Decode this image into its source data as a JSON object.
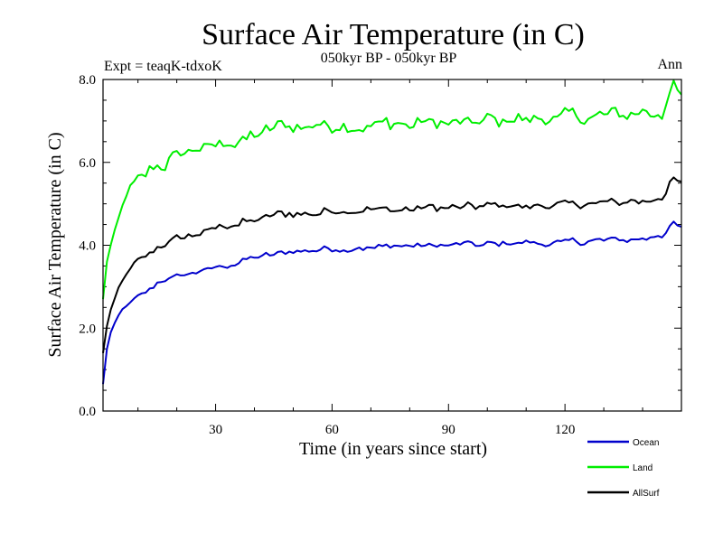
{
  "chart_data": {
    "type": "line",
    "title": "Surface Air Temperature (in C)",
    "subtitle": "050kyr BP - 050kyr BP",
    "experiment": "Expt = teaqK-tdxoK",
    "season": "Ann",
    "xlabel": "Time (in years since start)",
    "ylabel": "Surface Air Temperature (in C)",
    "xlim": [
      1,
      150
    ],
    "ylim": [
      0,
      8
    ],
    "xticks": [
      30,
      60,
      90,
      120
    ],
    "yticks": [
      0,
      2,
      4,
      6,
      8
    ],
    "xtick_labels": [
      "30",
      "60",
      "90",
      "120"
    ],
    "ytick_labels": [
      "0.0",
      "2.0",
      "4.0",
      "6.0",
      "8.0"
    ],
    "legend_position": "bottom-right",
    "series": [
      {
        "name": "Ocean",
        "color": "#0000cc",
        "key_values": [
          [
            1,
            0.65
          ],
          [
            2,
            1.5
          ],
          [
            3,
            1.9
          ],
          [
            5,
            2.3
          ],
          [
            7,
            2.55
          ],
          [
            10,
            2.75
          ],
          [
            15,
            3.1
          ],
          [
            20,
            3.25
          ],
          [
            25,
            3.35
          ],
          [
            30,
            3.45
          ],
          [
            35,
            3.55
          ],
          [
            40,
            3.7
          ],
          [
            45,
            3.8
          ],
          [
            50,
            3.85
          ],
          [
            55,
            3.88
          ],
          [
            60,
            3.9
          ],
          [
            70,
            3.95
          ],
          [
            80,
            3.97
          ],
          [
            90,
            4.0
          ],
          [
            100,
            4.02
          ],
          [
            110,
            4.05
          ],
          [
            120,
            4.08
          ],
          [
            130,
            4.12
          ],
          [
            140,
            4.15
          ],
          [
            145,
            4.25
          ],
          [
            148,
            4.5
          ],
          [
            150,
            4.4
          ]
        ],
        "noise_amplitude": 0.15
      },
      {
        "name": "Land",
        "color": "#00ee00",
        "key_values": [
          [
            1,
            2.7
          ],
          [
            2,
            3.6
          ],
          [
            3,
            4.0
          ],
          [
            5,
            4.6
          ],
          [
            7,
            5.2
          ],
          [
            10,
            5.6
          ],
          [
            15,
            5.95
          ],
          [
            20,
            6.1
          ],
          [
            25,
            6.25
          ],
          [
            30,
            6.4
          ],
          [
            35,
            6.5
          ],
          [
            40,
            6.65
          ],
          [
            45,
            6.8
          ],
          [
            50,
            6.88
          ],
          [
            55,
            6.9
          ],
          [
            60,
            6.92
          ],
          [
            70,
            6.93
          ],
          [
            80,
            6.95
          ],
          [
            90,
            6.98
          ],
          [
            100,
            7.0
          ],
          [
            110,
            7.05
          ],
          [
            120,
            7.08
          ],
          [
            130,
            7.12
          ],
          [
            140,
            7.15
          ],
          [
            145,
            7.2
          ],
          [
            148,
            7.85
          ],
          [
            150,
            7.6
          ]
        ],
        "noise_amplitude": 0.35
      },
      {
        "name": "AllSurf",
        "color": "#000000",
        "key_values": [
          [
            1,
            1.4
          ],
          [
            2,
            2.05
          ],
          [
            3,
            2.45
          ],
          [
            5,
            2.95
          ],
          [
            7,
            3.3
          ],
          [
            10,
            3.6
          ],
          [
            15,
            3.95
          ],
          [
            20,
            4.12
          ],
          [
            25,
            4.28
          ],
          [
            30,
            4.4
          ],
          [
            35,
            4.5
          ],
          [
            40,
            4.63
          ],
          [
            45,
            4.73
          ],
          [
            50,
            4.78
          ],
          [
            55,
            4.8
          ],
          [
            60,
            4.82
          ],
          [
            70,
            4.86
          ],
          [
            80,
            4.88
          ],
          [
            90,
            4.9
          ],
          [
            100,
            4.93
          ],
          [
            110,
            4.95
          ],
          [
            120,
            4.98
          ],
          [
            130,
            5.02
          ],
          [
            140,
            5.05
          ],
          [
            145,
            5.12
          ],
          [
            148,
            5.6
          ],
          [
            150,
            5.45
          ]
        ],
        "noise_amplitude": 0.2
      }
    ]
  }
}
